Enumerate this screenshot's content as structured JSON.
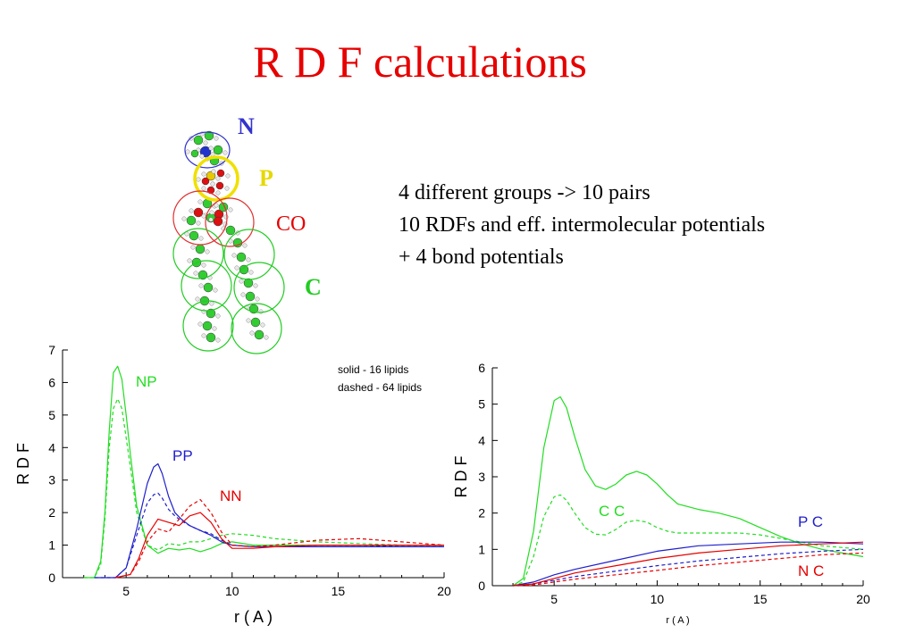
{
  "slide": {
    "title": "R D F calculations",
    "bullets": [
      "4 different groups ->   10 pairs",
      "10 RDFs and eff. intermolecular potentials",
      "+ 4 bond potentials"
    ]
  },
  "molecule": {
    "labels": [
      {
        "text": "N",
        "color": "#3333cc"
      },
      {
        "text": "P",
        "color": "#e6d800"
      },
      {
        "text": "CO",
        "color": "#e60000"
      },
      {
        "text": "C",
        "color": "#22cc22"
      }
    ]
  },
  "chart_data": [
    {
      "type": "line",
      "xlabel": "r ( A )",
      "ylabel": "R D F",
      "xlim": [
        2,
        20
      ],
      "ylim": [
        0,
        7
      ],
      "xticks": [
        5,
        10,
        15,
        20
      ],
      "yticks": [
        0,
        1,
        2,
        3,
        4,
        5,
        6,
        7
      ],
      "annotations": [
        "solid - 16 lipids",
        "dashed - 64 lipids"
      ],
      "series": [
        {
          "name": "NP",
          "color": "#22dd22",
          "style": "solid",
          "x": [
            3.0,
            3.5,
            3.8,
            4.0,
            4.2,
            4.4,
            4.6,
            4.8,
            5.0,
            5.2,
            5.5,
            6.0,
            6.5,
            7.0,
            7.5,
            8.0,
            8.5,
            9.0,
            9.5,
            10.0,
            11.0,
            12.0,
            14.0,
            16.0,
            18.0,
            20.0
          ],
          "y": [
            0.0,
            0.0,
            0.5,
            2.0,
            4.5,
            6.3,
            6.5,
            6.1,
            5.0,
            3.8,
            2.2,
            1.0,
            0.75,
            0.9,
            0.85,
            0.9,
            0.8,
            0.9,
            1.05,
            1.1,
            1.0,
            1.0,
            1.0,
            1.0,
            1.0,
            1.0
          ]
        },
        {
          "name": "NP",
          "color": "#22dd22",
          "style": "dashed",
          "x": [
            3.0,
            3.5,
            3.8,
            4.0,
            4.2,
            4.4,
            4.6,
            4.8,
            5.0,
            5.2,
            5.5,
            6.0,
            6.5,
            7.0,
            7.5,
            8.0,
            8.5,
            9.0,
            9.5,
            10.0,
            11.0,
            12.0,
            14.0,
            16.0,
            18.0,
            20.0
          ],
          "y": [
            0.0,
            0.0,
            0.4,
            1.8,
            4.0,
            5.2,
            5.5,
            5.2,
            4.3,
            3.4,
            2.0,
            1.0,
            0.85,
            1.05,
            1.0,
            1.1,
            1.1,
            1.2,
            1.3,
            1.35,
            1.3,
            1.2,
            1.1,
            1.05,
            1.0,
            1.0
          ]
        },
        {
          "name": "PP",
          "color": "#1f1fcc",
          "style": "solid",
          "x": [
            3.5,
            4.5,
            5.0,
            5.5,
            6.0,
            6.3,
            6.5,
            6.7,
            7.0,
            7.3,
            7.6,
            8.0,
            8.5,
            9.0,
            9.5,
            10.0,
            11.0,
            12.0,
            14.0,
            16.0,
            18.0,
            20.0
          ],
          "y": [
            0.0,
            0.0,
            0.3,
            1.5,
            2.9,
            3.4,
            3.5,
            3.2,
            2.5,
            2.0,
            1.8,
            1.6,
            1.45,
            1.3,
            1.1,
            1.0,
            0.95,
            0.95,
            0.95,
            0.95,
            0.95,
            0.95
          ]
        },
        {
          "name": "PP",
          "color": "#1f1fcc",
          "style": "dashed",
          "x": [
            3.5,
            4.5,
            5.0,
            5.5,
            6.0,
            6.3,
            6.5,
            6.7,
            7.0,
            7.3,
            7.6,
            8.0,
            8.5,
            9.0,
            9.5,
            10.0,
            11.0,
            12.0,
            14.0,
            16.0,
            18.0,
            20.0
          ],
          "y": [
            0.0,
            0.0,
            0.3,
            1.3,
            2.3,
            2.55,
            2.6,
            2.45,
            2.1,
            1.9,
            1.75,
            1.6,
            1.45,
            1.35,
            1.15,
            1.0,
            0.95,
            0.95,
            1.0,
            1.0,
            0.95,
            0.95
          ]
        },
        {
          "name": "NN",
          "color": "#e60000",
          "style": "solid",
          "x": [
            4.5,
            5.2,
            5.6,
            6.0,
            6.5,
            7.0,
            7.5,
            8.0,
            8.5,
            9.0,
            9.5,
            10.0,
            11.0,
            12.0,
            14.0,
            16.0,
            18.0,
            20.0
          ],
          "y": [
            0.0,
            0.1,
            0.6,
            1.3,
            1.8,
            1.7,
            1.6,
            1.9,
            2.0,
            1.7,
            1.2,
            0.9,
            0.9,
            0.95,
            1.0,
            1.0,
            1.0,
            1.0
          ]
        },
        {
          "name": "NN",
          "color": "#e60000",
          "style": "dashed",
          "x": [
            4.5,
            5.2,
            5.6,
            6.0,
            6.5,
            7.0,
            7.5,
            8.0,
            8.5,
            9.0,
            9.5,
            10.0,
            11.0,
            12.0,
            14.0,
            16.0,
            18.0,
            20.0
          ],
          "y": [
            0.0,
            0.1,
            0.5,
            1.1,
            1.5,
            1.4,
            1.8,
            2.2,
            2.4,
            2.0,
            1.4,
            1.0,
            0.95,
            1.0,
            1.15,
            1.2,
            1.1,
            1.0
          ]
        }
      ]
    },
    {
      "type": "line",
      "xlabel": "r ( A )",
      "ylabel": "R D F",
      "xlim": [
        2,
        20
      ],
      "ylim": [
        0,
        6
      ],
      "xticks": [
        5,
        10,
        15,
        20
      ],
      "yticks": [
        0,
        1,
        2,
        3,
        4,
        5,
        6
      ],
      "series": [
        {
          "name": "C C",
          "color": "#22dd22",
          "style": "solid",
          "x": [
            3.0,
            3.5,
            4.0,
            4.5,
            5.0,
            5.3,
            5.6,
            6.0,
            6.5,
            7.0,
            7.5,
            8.0,
            8.5,
            9.0,
            9.5,
            10.0,
            10.5,
            11.0,
            12.0,
            13.0,
            14.0,
            15.0,
            16.0,
            17.0,
            18.0,
            19.0,
            20.0
          ],
          "y": [
            0.0,
            0.2,
            1.5,
            3.8,
            5.1,
            5.2,
            4.9,
            4.1,
            3.2,
            2.75,
            2.65,
            2.8,
            3.05,
            3.15,
            3.05,
            2.8,
            2.5,
            2.25,
            2.1,
            2.0,
            1.85,
            1.6,
            1.35,
            1.15,
            1.0,
            0.9,
            0.8
          ]
        },
        {
          "name": "C C",
          "color": "#22dd22",
          "style": "dashed",
          "x": [
            3.0,
            3.5,
            4.0,
            4.5,
            5.0,
            5.3,
            5.6,
            6.0,
            6.5,
            7.0,
            7.5,
            8.0,
            8.5,
            9.0,
            9.5,
            10.0,
            10.5,
            11.0,
            12.0,
            13.0,
            14.0,
            15.0,
            16.0,
            17.0,
            18.0,
            19.0,
            20.0
          ],
          "y": [
            0.0,
            0.1,
            0.8,
            1.9,
            2.45,
            2.5,
            2.35,
            2.0,
            1.6,
            1.42,
            1.4,
            1.55,
            1.75,
            1.8,
            1.75,
            1.6,
            1.5,
            1.45,
            1.45,
            1.45,
            1.45,
            1.4,
            1.3,
            1.2,
            1.1,
            1.05,
            1.0
          ]
        },
        {
          "name": "P C",
          "color": "#1f1fcc",
          "style": "solid",
          "x": [
            3.0,
            4.0,
            5.0,
            6.0,
            8.0,
            10.0,
            12.0,
            14.0,
            16.0,
            18.0,
            20.0
          ],
          "y": [
            0.0,
            0.1,
            0.3,
            0.45,
            0.7,
            0.95,
            1.1,
            1.15,
            1.2,
            1.2,
            1.15
          ]
        },
        {
          "name": "P C",
          "color": "#1f1fcc",
          "style": "dashed",
          "x": [
            3.0,
            4.0,
            5.0,
            6.0,
            8.0,
            10.0,
            12.0,
            14.0,
            16.0,
            18.0,
            20.0
          ],
          "y": [
            0.0,
            0.05,
            0.15,
            0.25,
            0.4,
            0.55,
            0.68,
            0.78,
            0.88,
            0.95,
            1.0
          ]
        },
        {
          "name": "N C",
          "color": "#e60000",
          "style": "solid",
          "x": [
            3.0,
            4.0,
            5.0,
            6.0,
            8.0,
            10.0,
            12.0,
            14.0,
            16.0,
            18.0,
            20.0
          ],
          "y": [
            0.0,
            0.05,
            0.2,
            0.35,
            0.55,
            0.75,
            0.9,
            1.0,
            1.1,
            1.15,
            1.2
          ]
        },
        {
          "name": "N C",
          "color": "#e60000",
          "style": "dashed",
          "x": [
            3.0,
            4.0,
            5.0,
            6.0,
            8.0,
            10.0,
            12.0,
            14.0,
            16.0,
            18.0,
            20.0
          ],
          "y": [
            0.0,
            0.02,
            0.1,
            0.18,
            0.3,
            0.42,
            0.55,
            0.65,
            0.75,
            0.85,
            0.9
          ]
        }
      ]
    }
  ]
}
